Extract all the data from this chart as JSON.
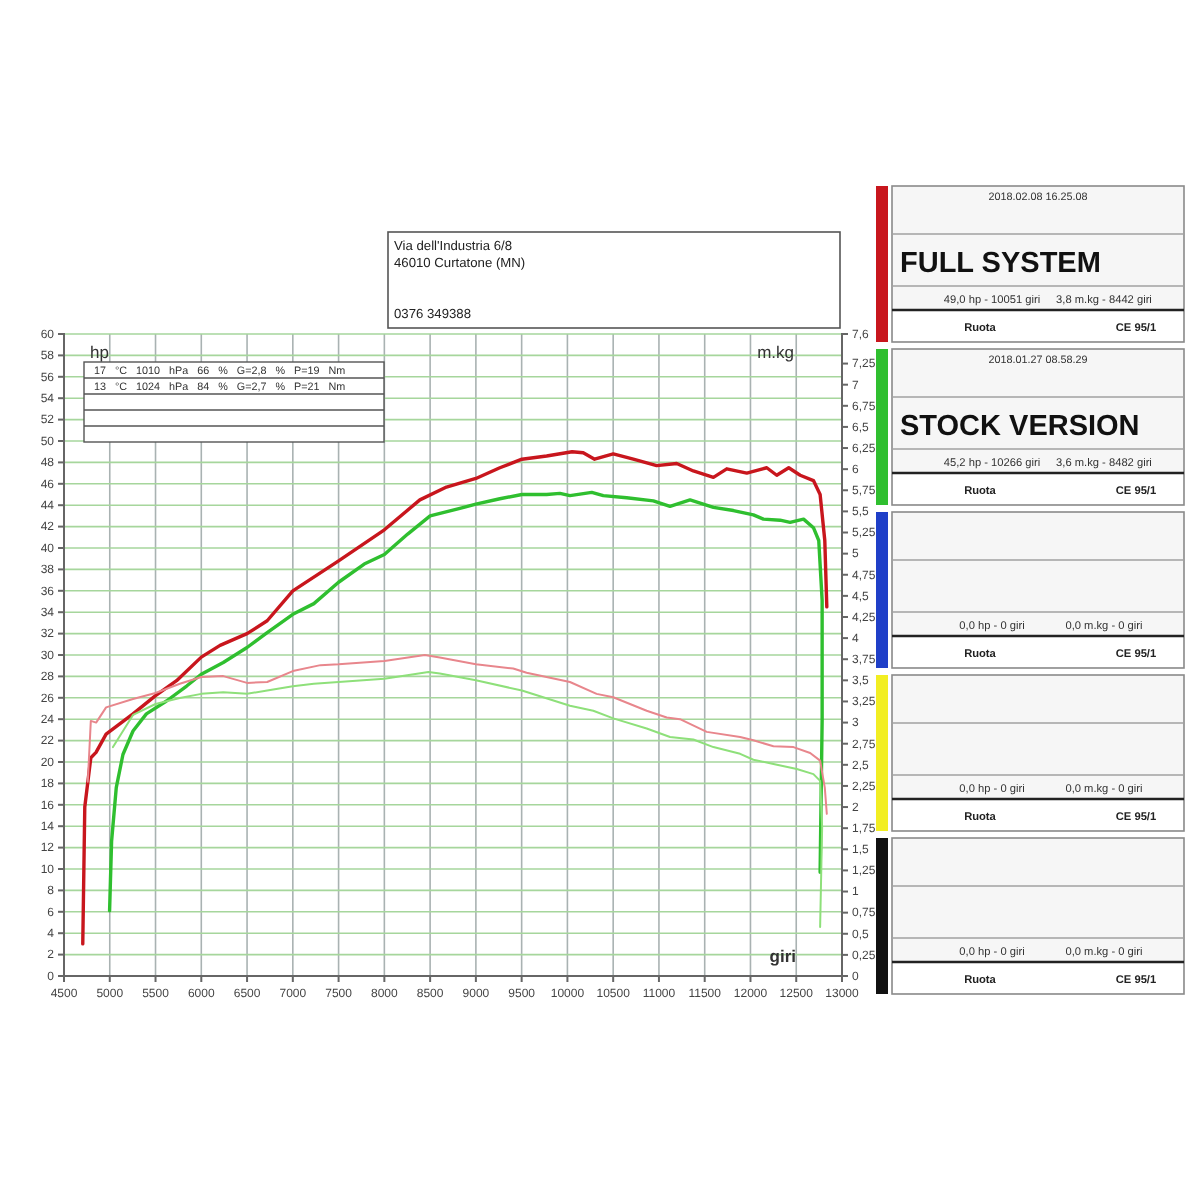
{
  "chart_data": [
    {
      "type": "line",
      "xlabel": "giri",
      "ylabel": "hp",
      "y2label": "m.kg",
      "xlim": [
        4500,
        13000
      ],
      "xticks": [
        4500,
        5000,
        5500,
        6000,
        6500,
        7000,
        7500,
        8000,
        8500,
        9000,
        9500,
        10000,
        10500,
        11000,
        11500,
        12000,
        12500,
        13000
      ],
      "ylim": [
        0,
        60
      ],
      "yticks": [
        0,
        2,
        4,
        6,
        8,
        10,
        12,
        14,
        16,
        18,
        20,
        22,
        24,
        26,
        28,
        30,
        32,
        34,
        36,
        38,
        40,
        42,
        44,
        46,
        48,
        50,
        52,
        54,
        56,
        58,
        60
      ],
      "y2lim": [
        0,
        7.6
      ],
      "y2ticks": [
        0,
        {
          "value": 0.25,
          "label": "0,25"
        },
        {
          "value": 0.5,
          "label": "0,5"
        },
        {
          "value": 0.75,
          "label": "0,75"
        },
        1,
        {
          "value": 1.25,
          "label": "1,25"
        },
        {
          "value": 1.5,
          "label": "1,5"
        },
        {
          "value": 1.75,
          "label": "1,75"
        },
        2,
        {
          "value": 2.25,
          "label": "2,25"
        },
        {
          "value": 2.5,
          "label": "2,5"
        },
        {
          "value": 2.75,
          "label": "2,75"
        },
        3,
        {
          "value": 3.25,
          "label": "3,25"
        },
        {
          "value": 3.5,
          "label": "3,5"
        },
        {
          "value": 3.75,
          "label": "3,75"
        },
        4,
        {
          "value": 4.25,
          "label": "4,25"
        },
        {
          "value": 4.5,
          "label": "4,5"
        },
        {
          "value": 4.75,
          "label": "4,75"
        },
        5,
        {
          "value": 5.25,
          "label": "5,25"
        },
        {
          "value": 5.5,
          "label": "5,5"
        },
        {
          "value": 5.75,
          "label": "5,75"
        },
        6,
        {
          "value": 6.25,
          "label": "6,25"
        },
        {
          "value": 6.5,
          "label": "6,5"
        },
        {
          "value": 6.75,
          "label": "6,75"
        },
        7,
        {
          "value": 7.25,
          "label": "7,25"
        },
        {
          "value": 7.6,
          "label": "7,6"
        }
      ],
      "grid": true,
      "legend": "right",
      "annotations": [
        "17 °C 1010 hPa 66 % G=2,8 % P=19 Nm",
        "13 °C 1024 hPa 84 % G=2,7 % P=21 Nm"
      ],
      "series": [
        {
          "name": "FULL SYSTEM",
          "color": "#c8161d",
          "x": [
            4705,
            4727,
            4793,
            4850,
            4960,
            5254,
            5500,
            5730,
            6000,
            6205,
            6500,
            6720,
            7000,
            7500,
            8000,
            8388,
            8679,
            9000,
            9262,
            9503,
            9773,
            10051,
            10173,
            10297,
            10501,
            10720,
            10975,
            11194,
            11376,
            11595,
            11741,
            11960,
            12178,
            12287,
            12418,
            12543,
            12688,
            12761,
            12812,
            12834
          ],
          "values": [
            3.0,
            15.8,
            20.4,
            20.9,
            22.6,
            24.5,
            26.2,
            27.6,
            29.8,
            30.9,
            32.0,
            33.2,
            36.0,
            38.8,
            41.7,
            44.5,
            45.7,
            46.5,
            47.5,
            48.3,
            48.6,
            49.0,
            48.9,
            48.3,
            48.8,
            48.3,
            47.7,
            47.9,
            47.2,
            46.6,
            47.4,
            47.0,
            47.5,
            46.8,
            47.5,
            46.8,
            46.3,
            45.0,
            40.7,
            34.5
          ]
        },
        {
          "name": "STOCK VERSION",
          "color": "#2fbf2f",
          "x": [
            4998,
            5020,
            5071,
            5144,
            5254,
            5400,
            5620,
            5840,
            6000,
            6240,
            6500,
            6720,
            7000,
            7230,
            7500,
            7780,
            8000,
            8255,
            8500,
            8825,
            9000,
            9262,
            9503,
            9773,
            9918,
            10028,
            10266,
            10392,
            10647,
            10939,
            11121,
            11340,
            11595,
            11814,
            12032,
            12142,
            12324,
            12433,
            12580,
            12688,
            12746,
            12783,
            12783,
            12761
          ],
          "values": [
            6.1,
            12.6,
            17.6,
            20.7,
            22.9,
            24.5,
            25.7,
            27.1,
            28.2,
            29.3,
            30.7,
            32.1,
            33.8,
            34.8,
            36.8,
            38.5,
            39.4,
            41.3,
            43.0,
            43.7,
            44.1,
            44.6,
            45.0,
            45.0,
            45.1,
            44.9,
            45.2,
            44.9,
            44.7,
            44.4,
            43.9,
            44.5,
            43.8,
            43.5,
            43.1,
            42.7,
            42.6,
            42.4,
            42.7,
            41.9,
            40.7,
            35.1,
            23.9,
            9.7
          ]
        },
        {
          "color": "#e8868c",
          "axis": "y2",
          "x": [
            4760,
            4793,
            4851,
            4960,
            5254,
            5500,
            5765,
            6000,
            6240,
            6500,
            6720,
            7000,
            7302,
            7500,
            8000,
            8442,
            8606,
            9000,
            9408,
            9554,
            10028,
            10319,
            10501,
            10866,
            11085,
            11230,
            11522,
            11887,
            12032,
            12251,
            12470,
            12652,
            12761,
            12812,
            12834
          ],
          "values": [
            2.3,
            3.02,
            3.0,
            3.18,
            3.28,
            3.35,
            3.46,
            3.54,
            3.55,
            3.47,
            3.48,
            3.61,
            3.68,
            3.69,
            3.73,
            3.8,
            3.77,
            3.69,
            3.64,
            3.59,
            3.48,
            3.34,
            3.3,
            3.14,
            3.06,
            3.04,
            2.89,
            2.83,
            2.79,
            2.72,
            2.71,
            2.64,
            2.55,
            2.23,
            1.92
          ]
        },
        {
          "color": "#8ee07a",
          "axis": "y2",
          "x": [
            5035,
            5254,
            5500,
            5765,
            6000,
            6240,
            6500,
            6720,
            7000,
            7230,
            7500,
            8000,
            8482,
            8606,
            9000,
            9503,
            10028,
            10283,
            10501,
            10866,
            11121,
            11376,
            11595,
            11887,
            12032,
            12251,
            12506,
            12688,
            12761,
            12783,
            12761
          ],
          "values": [
            2.71,
            3.09,
            3.22,
            3.29,
            3.34,
            3.36,
            3.34,
            3.38,
            3.43,
            3.46,
            3.48,
            3.52,
            3.6,
            3.58,
            3.5,
            3.38,
            3.2,
            3.14,
            3.05,
            2.93,
            2.83,
            2.8,
            2.71,
            2.63,
            2.56,
            2.51,
            2.45,
            2.39,
            2.31,
            1.76,
            0.58
          ]
        }
      ]
    },
    {
      "type": "other",
      "colors": [
        "#1f3fc8",
        "#f2ee22",
        "#111111"
      ],
      "annotations": [
        "Via dell'Industria 6/8",
        "46010 Curtatone (MN)",
        "0376 349388",
        "2018.02.08 16.25.08",
        "49,0 hp - 10051 giri",
        "3,8 m.kg - 8442 giri",
        "Ruota",
        "CE 95/1",
        "2018.01.27 08.58.29",
        "45,2 hp - 10266 giri",
        "3,6 m.kg - 8482 giri",
        "Ruota",
        "CE 95/1",
        "0,0 hp - 0 giri",
        "0,0 m.kg - 0 giri",
        "Ruota",
        "CE 95/1",
        "0,0 hp - 0 giri",
        "0,0 m.kg - 0 giri",
        "Ruota",
        "CE 95/1",
        "0,0 hp - 0 giri",
        "0,0 m.kg - 0 giri",
        "Ruota",
        "CE 95/1"
      ]
    }
  ]
}
